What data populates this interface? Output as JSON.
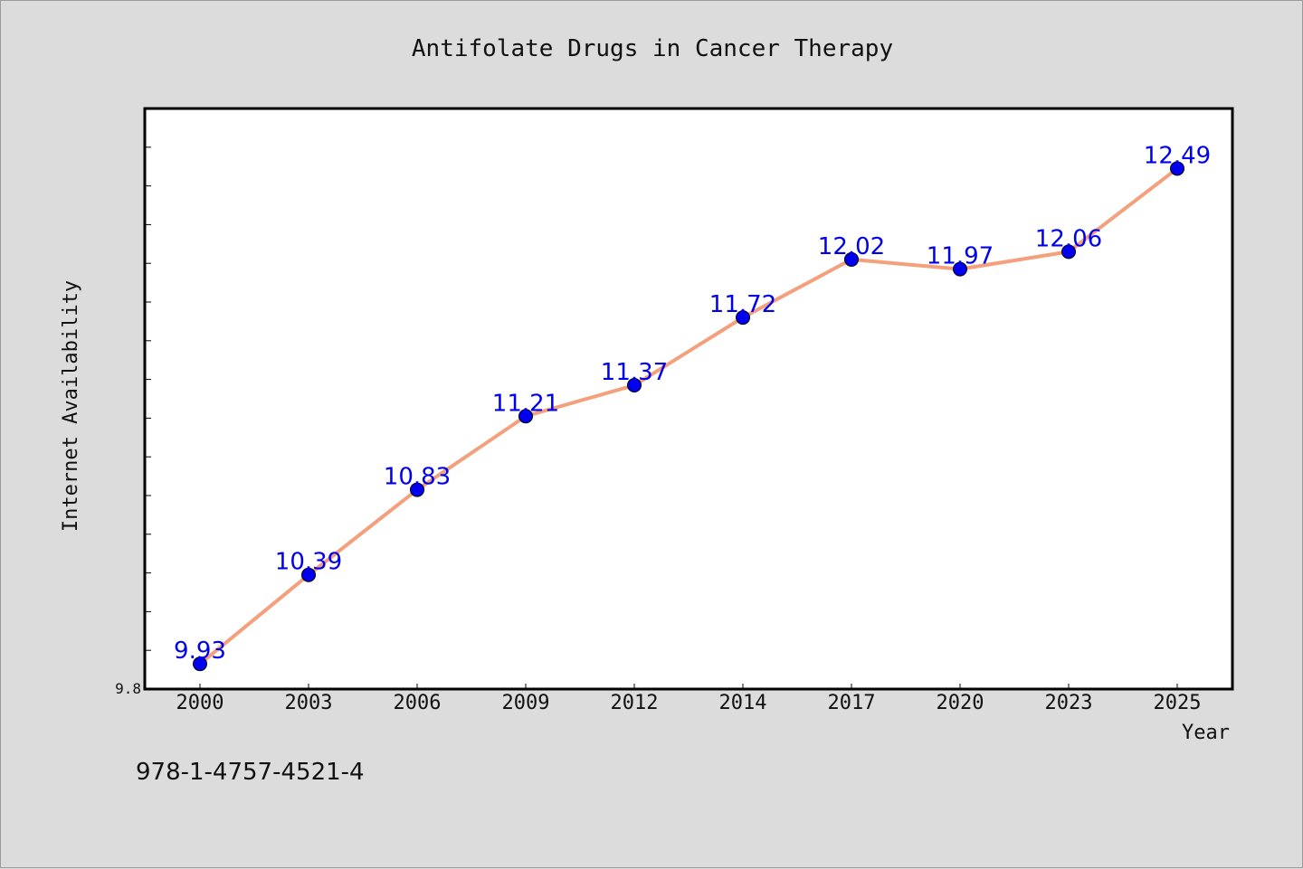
{
  "colors": {
    "background": "#dcdcdc",
    "plot_background": "#ffffff",
    "line": "#f4a07c",
    "marker": "#0000ee",
    "data_label": "#0000ee"
  },
  "footer": {
    "text": "978-1-4757-4521-4"
  },
  "chart_data": {
    "type": "line",
    "title": "Antifolate Drugs in Cancer Therapy",
    "xlabel": "Year",
    "ylabel": "Internet Availability",
    "categories": [
      "2000",
      "2003",
      "2006",
      "2009",
      "2012",
      "2014",
      "2017",
      "2020",
      "2023",
      "2025"
    ],
    "series": [
      {
        "values": [
          9.93,
          10.39,
          10.83,
          11.21,
          11.37,
          11.72,
          12.02,
          11.97,
          12.06,
          12.49
        ],
        "labels": [
          "9.93",
          "10.39",
          "10.83",
          "11.21",
          "11.37",
          "11.72",
          "12.02",
          "11.97",
          "12.06",
          "12.49"
        ]
      }
    ],
    "ylim": [
      9.8,
      12.8
    ],
    "ytick_labels": [
      {
        "value": 9.8,
        "label": "9.8"
      }
    ],
    "y_minor_tick_step": 0.2,
    "grid": false,
    "legend": "none"
  }
}
